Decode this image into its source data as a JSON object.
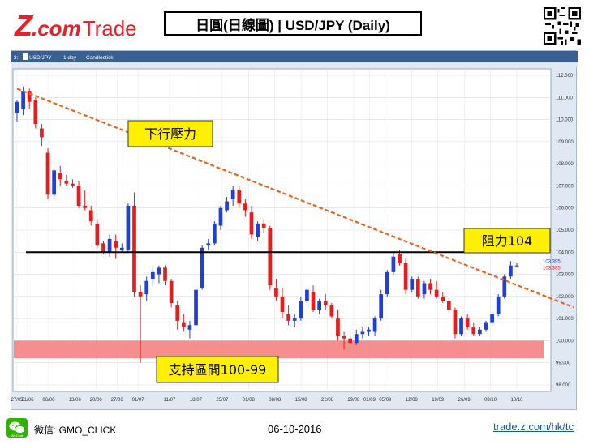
{
  "logo": {
    "z": "Z",
    "com": ".com",
    "trade": "Trade"
  },
  "title": "日圓(日線圖) | USD/JPY  (Daily)",
  "chart_header": {
    "symbol_tab": "USD/JPY",
    "interval_tab": "1 day",
    "style_tab": "Candlestick",
    "prefix": "2:"
  },
  "annotations": {
    "downtrend_label": "下行壓力",
    "resistance_label": "阻力104",
    "support_label": "支持區間100-99"
  },
  "price_labels": {
    "high_tag": "103.395",
    "low_tag": "103.385"
  },
  "footer": {
    "wechat_label": "WeChat",
    "wechat_text": "微信: GMO_CLICK",
    "date": "06-10-2016",
    "url": "trade.z.com/hk/tc"
  },
  "colors": {
    "brand_red": "#e8202a",
    "bull": "#1f3fd6",
    "bear": "#e81c1c",
    "trendline": "#e8641e",
    "support_zone": "#f47a7a",
    "resistance": "#000000"
  },
  "chart_data": {
    "type": "candlestick",
    "ylim": [
      98.0,
      112.0
    ],
    "y_ticks": [
      "112.000",
      "111.000",
      "110.000",
      "109.000",
      "108.000",
      "107.000",
      "106.000",
      "105.000",
      "104.000",
      "103.000",
      "102.000",
      "101.000",
      "100.000",
      "99.000",
      "98.000"
    ],
    "x_ticks": [
      "27/05",
      "01/06",
      "06/06",
      "13/06",
      "20/06",
      "27/06",
      "01/07",
      "11/07",
      "18/07",
      "25/07",
      "01/08",
      "08/08",
      "15/08",
      "22/08",
      "29/08",
      "01/09",
      "05/09",
      "12/09",
      "19/09",
      "26/09",
      "03/10",
      "10/10"
    ],
    "candles": [
      {
        "o": 110.3,
        "h": 110.9,
        "l": 109.9,
        "c": 110.8
      },
      {
        "o": 110.5,
        "h": 111.5,
        "l": 110.2,
        "c": 111.3
      },
      {
        "o": 111.3,
        "h": 111.4,
        "l": 110.5,
        "c": 110.8
      },
      {
        "o": 110.9,
        "h": 111.0,
        "l": 109.6,
        "c": 109.8
      },
      {
        "o": 109.6,
        "h": 109.8,
        "l": 108.8,
        "c": 109.2
      },
      {
        "o": 108.5,
        "h": 108.7,
        "l": 106.4,
        "c": 106.6
      },
      {
        "o": 106.6,
        "h": 107.8,
        "l": 106.5,
        "c": 107.7
      },
      {
        "o": 107.6,
        "h": 107.9,
        "l": 107.0,
        "c": 107.3
      },
      {
        "o": 107.2,
        "h": 107.5,
        "l": 107.0,
        "c": 107.1
      },
      {
        "o": 107.1,
        "h": 107.3,
        "l": 106.9,
        "c": 107.0
      },
      {
        "o": 107.0,
        "h": 107.2,
        "l": 106.0,
        "c": 106.1
      },
      {
        "o": 106.1,
        "h": 106.8,
        "l": 105.9,
        "c": 106.0
      },
      {
        "o": 105.9,
        "h": 106.1,
        "l": 105.2,
        "c": 105.4
      },
      {
        "o": 105.3,
        "h": 105.5,
        "l": 104.2,
        "c": 104.3
      },
      {
        "o": 104.4,
        "h": 104.5,
        "l": 103.9,
        "c": 104.0
      },
      {
        "o": 104.0,
        "h": 104.8,
        "l": 103.8,
        "c": 104.6
      },
      {
        "o": 104.5,
        "h": 104.8,
        "l": 103.7,
        "c": 104.2
      },
      {
        "o": 104.1,
        "h": 104.4,
        "l": 104.0,
        "c": 104.2
      },
      {
        "o": 104.1,
        "h": 106.2,
        "l": 104.0,
        "c": 106.1
      },
      {
        "o": 106.1,
        "h": 106.7,
        "l": 102.0,
        "c": 102.2
      },
      {
        "o": 102.2,
        "h": 102.5,
        "l": 99.0,
        "c": 102.0
      },
      {
        "o": 102.1,
        "h": 102.9,
        "l": 101.8,
        "c": 102.7
      },
      {
        "o": 102.8,
        "h": 103.3,
        "l": 102.5,
        "c": 103.1
      },
      {
        "o": 103.0,
        "h": 103.4,
        "l": 102.6,
        "c": 103.3
      },
      {
        "o": 103.3,
        "h": 103.4,
        "l": 102.5,
        "c": 102.7
      },
      {
        "o": 102.7,
        "h": 102.8,
        "l": 101.5,
        "c": 101.7
      },
      {
        "o": 101.6,
        "h": 101.8,
        "l": 100.5,
        "c": 100.9
      },
      {
        "o": 100.8,
        "h": 101.2,
        "l": 100.4,
        "c": 100.6
      },
      {
        "o": 100.5,
        "h": 100.9,
        "l": 100.1,
        "c": 100.7
      },
      {
        "o": 100.7,
        "h": 102.4,
        "l": 100.6,
        "c": 102.3
      },
      {
        "o": 102.4,
        "h": 104.3,
        "l": 102.3,
        "c": 104.2
      },
      {
        "o": 104.3,
        "h": 104.6,
        "l": 104.1,
        "c": 104.4
      },
      {
        "o": 104.4,
        "h": 105.4,
        "l": 104.3,
        "c": 105.3
      },
      {
        "o": 105.2,
        "h": 106.1,
        "l": 105.0,
        "c": 106.0
      },
      {
        "o": 105.9,
        "h": 106.5,
        "l": 105.8,
        "c": 106.3
      },
      {
        "o": 106.4,
        "h": 107.0,
        "l": 106.1,
        "c": 106.8
      },
      {
        "o": 106.8,
        "h": 107.0,
        "l": 106.0,
        "c": 106.2
      },
      {
        "o": 106.2,
        "h": 106.4,
        "l": 105.6,
        "c": 105.9
      },
      {
        "o": 105.8,
        "h": 106.1,
        "l": 104.6,
        "c": 104.8
      },
      {
        "o": 104.7,
        "h": 105.4,
        "l": 104.5,
        "c": 105.3
      },
      {
        "o": 105.3,
        "h": 105.5,
        "l": 104.9,
        "c": 105.1
      },
      {
        "o": 105.1,
        "h": 105.2,
        "l": 102.3,
        "c": 102.5
      },
      {
        "o": 102.4,
        "h": 102.8,
        "l": 101.8,
        "c": 102.0
      },
      {
        "o": 102.0,
        "h": 102.4,
        "l": 101.0,
        "c": 101.3
      },
      {
        "o": 101.2,
        "h": 101.6,
        "l": 100.7,
        "c": 100.9
      },
      {
        "o": 100.9,
        "h": 101.2,
        "l": 100.6,
        "c": 101.0
      },
      {
        "o": 101.0,
        "h": 102.0,
        "l": 100.9,
        "c": 101.8
      },
      {
        "o": 101.8,
        "h": 102.4,
        "l": 101.7,
        "c": 102.3
      },
      {
        "o": 102.2,
        "h": 102.5,
        "l": 101.3,
        "c": 101.4
      },
      {
        "o": 101.4,
        "h": 101.9,
        "l": 101.2,
        "c": 101.8
      },
      {
        "o": 101.8,
        "h": 102.1,
        "l": 101.4,
        "c": 101.6
      },
      {
        "o": 101.6,
        "h": 101.7,
        "l": 101.0,
        "c": 101.1
      },
      {
        "o": 101.0,
        "h": 101.4,
        "l": 100.0,
        "c": 100.2
      },
      {
        "o": 100.2,
        "h": 100.4,
        "l": 99.6,
        "c": 100.1
      },
      {
        "o": 100.1,
        "h": 100.2,
        "l": 99.8,
        "c": 99.9
      },
      {
        "o": 99.9,
        "h": 100.5,
        "l": 99.8,
        "c": 100.3
      },
      {
        "o": 100.3,
        "h": 100.6,
        "l": 100.1,
        "c": 100.4
      },
      {
        "o": 100.4,
        "h": 100.6,
        "l": 100.2,
        "c": 100.5
      },
      {
        "o": 100.4,
        "h": 101.1,
        "l": 100.2,
        "c": 101.0
      },
      {
        "o": 101.0,
        "h": 102.3,
        "l": 100.9,
        "c": 102.1
      },
      {
        "o": 102.1,
        "h": 103.2,
        "l": 102.0,
        "c": 103.1
      },
      {
        "o": 103.1,
        "h": 104.0,
        "l": 103.0,
        "c": 103.8
      },
      {
        "o": 103.9,
        "h": 104.1,
        "l": 103.4,
        "c": 103.5
      },
      {
        "o": 103.5,
        "h": 103.7,
        "l": 102.1,
        "c": 102.3
      },
      {
        "o": 102.3,
        "h": 102.9,
        "l": 102.2,
        "c": 102.8
      },
      {
        "o": 102.8,
        "h": 102.9,
        "l": 101.9,
        "c": 102.0
      },
      {
        "o": 102.1,
        "h": 102.7,
        "l": 101.9,
        "c": 102.6
      },
      {
        "o": 102.6,
        "h": 102.8,
        "l": 102.1,
        "c": 102.3
      },
      {
        "o": 102.3,
        "h": 102.7,
        "l": 101.9,
        "c": 102.0
      },
      {
        "o": 102.0,
        "h": 102.2,
        "l": 101.7,
        "c": 101.8
      },
      {
        "o": 101.8,
        "h": 102.0,
        "l": 101.2,
        "c": 101.4
      },
      {
        "o": 101.4,
        "h": 101.5,
        "l": 100.1,
        "c": 100.3
      },
      {
        "o": 100.3,
        "h": 101.1,
        "l": 100.2,
        "c": 101.0
      },
      {
        "o": 101.0,
        "h": 101.2,
        "l": 100.5,
        "c": 100.6
      },
      {
        "o": 100.6,
        "h": 100.8,
        "l": 100.2,
        "c": 100.3
      },
      {
        "o": 100.3,
        "h": 100.6,
        "l": 100.2,
        "c": 100.5
      },
      {
        "o": 100.5,
        "h": 100.9,
        "l": 100.4,
        "c": 100.8
      },
      {
        "o": 100.8,
        "h": 101.3,
        "l": 100.7,
        "c": 101.2
      },
      {
        "o": 101.2,
        "h": 102.1,
        "l": 101.1,
        "c": 102.0
      },
      {
        "o": 102.0,
        "h": 103.0,
        "l": 101.9,
        "c": 102.9
      },
      {
        "o": 102.9,
        "h": 103.6,
        "l": 102.8,
        "c": 103.4
      },
      {
        "o": 103.4,
        "h": 103.5,
        "l": 103.3,
        "c": 103.4
      }
    ],
    "resistance_level": 104.0,
    "support_zone": [
      99.2,
      100.0
    ],
    "trendline": {
      "start": {
        "index": 0,
        "price": 111.4
      },
      "end": {
        "index": 90,
        "price": 101.5
      }
    }
  }
}
